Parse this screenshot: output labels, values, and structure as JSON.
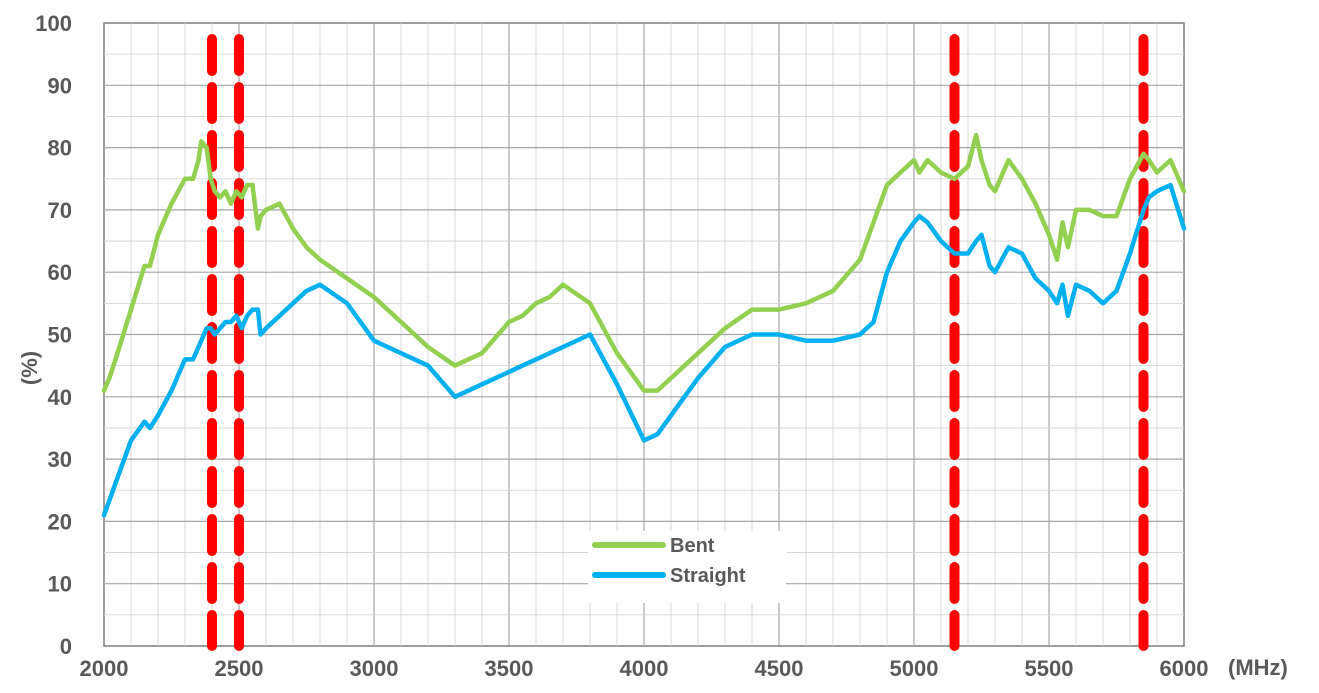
{
  "chart_data": {
    "type": "line",
    "xlabel": "(MHz)",
    "ylabel": "(%)",
    "xlim": [
      2000,
      6000
    ],
    "ylim": [
      0,
      100
    ],
    "x_ticks": [
      "2000",
      "2500",
      "3000",
      "3500",
      "4000",
      "4500",
      "5000",
      "5500",
      "6000"
    ],
    "y_ticks": [
      "0",
      "10",
      "20",
      "30",
      "40",
      "50",
      "60",
      "70",
      "80",
      "90",
      "100"
    ],
    "grid": true,
    "legend_position": "bottom-center",
    "markers": [
      2400,
      2500,
      5150,
      5850
    ],
    "marker_color": "#ff0000",
    "series": [
      {
        "name": "Bent",
        "color": "#92d050",
        "x": [
          2000,
          2020,
          2050,
          2100,
          2150,
          2170,
          2200,
          2250,
          2300,
          2330,
          2350,
          2360,
          2380,
          2395,
          2410,
          2430,
          2450,
          2470,
          2490,
          2510,
          2530,
          2550,
          2570,
          2580,
          2600,
          2650,
          2700,
          2750,
          2800,
          2900,
          3000,
          3100,
          3200,
          3300,
          3400,
          3500,
          3550,
          3600,
          3650,
          3700,
          3800,
          3900,
          4000,
          4050,
          4100,
          4200,
          4300,
          4400,
          4500,
          4600,
          4700,
          4800,
          4850,
          4900,
          4950,
          5000,
          5020,
          5050,
          5100,
          5150,
          5200,
          5230,
          5250,
          5280,
          5300,
          5350,
          5400,
          5450,
          5500,
          5530,
          5550,
          5570,
          5600,
          5650,
          5700,
          5750,
          5800,
          5850,
          5870,
          5900,
          5950,
          6000
        ],
        "values": [
          41,
          43,
          47,
          54,
          61,
          61,
          66,
          71,
          75,
          75,
          78,
          81,
          80,
          75,
          73,
          72,
          73,
          71,
          73,
          72,
          74,
          74,
          67,
          69,
          70,
          71,
          67,
          64,
          62,
          59,
          56,
          52,
          48,
          45,
          47,
          52,
          53,
          55,
          56,
          58,
          55,
          47,
          41,
          41,
          43,
          47,
          51,
          54,
          54,
          55,
          57,
          62,
          68,
          74,
          76,
          78,
          76,
          78,
          76,
          75,
          77,
          82,
          78,
          74,
          73,
          78,
          75,
          71,
          66,
          62,
          68,
          64,
          70,
          70,
          69,
          69,
          75,
          79,
          78,
          76,
          78,
          73
        ]
      },
      {
        "name": "Straight",
        "color": "#00b0f0",
        "x": [
          2000,
          2050,
          2100,
          2150,
          2170,
          2200,
          2250,
          2300,
          2330,
          2350,
          2380,
          2395,
          2410,
          2430,
          2450,
          2470,
          2490,
          2510,
          2530,
          2550,
          2570,
          2580,
          2600,
          2650,
          2700,
          2750,
          2800,
          2900,
          3000,
          3100,
          3200,
          3300,
          3400,
          3500,
          3550,
          3600,
          3650,
          3700,
          3800,
          3900,
          4000,
          4050,
          4100,
          4200,
          4300,
          4400,
          4500,
          4600,
          4700,
          4800,
          4850,
          4900,
          4950,
          5000,
          5020,
          5050,
          5100,
          5150,
          5200,
          5230,
          5250,
          5280,
          5300,
          5350,
          5400,
          5450,
          5500,
          5530,
          5550,
          5570,
          5600,
          5650,
          5700,
          5750,
          5800,
          5850,
          5870,
          5900,
          5950,
          6000
        ],
        "values": [
          21,
          27,
          33,
          36,
          35,
          37,
          41,
          46,
          46,
          48,
          51,
          51,
          50,
          51,
          52,
          52,
          53,
          51,
          53,
          54,
          54,
          50,
          51,
          53,
          55,
          57,
          58,
          55,
          49,
          47,
          45,
          40,
          42,
          44,
          45,
          46,
          47,
          48,
          50,
          42,
          33,
          34,
          37,
          43,
          48,
          50,
          50,
          49,
          49,
          50,
          52,
          60,
          65,
          68,
          69,
          68,
          65,
          63,
          63,
          65,
          66,
          61,
          60,
          64,
          63,
          59,
          57,
          55,
          58,
          53,
          58,
          57,
          55,
          57,
          63,
          70,
          72,
          73,
          74,
          67
        ]
      }
    ]
  }
}
